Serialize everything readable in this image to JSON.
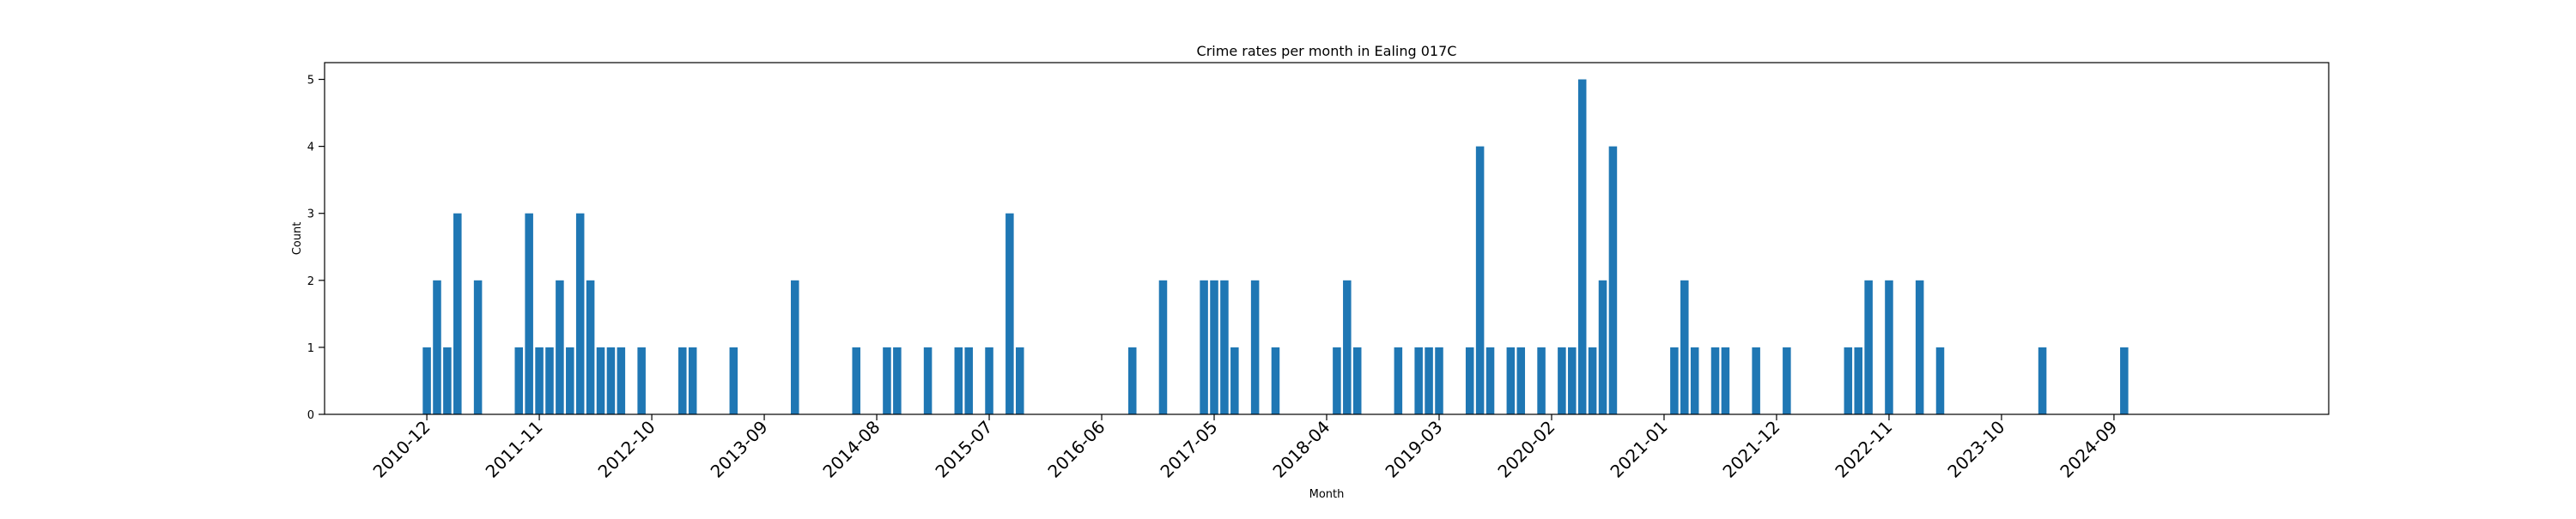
{
  "chart_data": {
    "type": "bar",
    "title": "Crime rates per month in Ealing 017C",
    "xlabel": "Month",
    "ylabel": "Count",
    "ylim": [
      0,
      5.25
    ],
    "yticks": [
      0,
      1,
      2,
      3,
      4,
      5
    ],
    "xtick_labels": [
      "2010-12",
      "2011-11",
      "2012-10",
      "2013-09",
      "2014-08",
      "2015-07",
      "2016-06",
      "2017-05",
      "2018-04",
      "2019-03",
      "2020-02",
      "2021-01",
      "2021-12",
      "2022-11",
      "2023-10",
      "2024-09"
    ],
    "xlim": [
      "2010-02",
      "2026-06"
    ],
    "grid": false,
    "legend": "none",
    "bar_color": "#1f77b4",
    "data": [
      {
        "x": "2010-12",
        "y": 1
      },
      {
        "x": "2011-01",
        "y": 2
      },
      {
        "x": "2011-02",
        "y": 1
      },
      {
        "x": "2011-03",
        "y": 3
      },
      {
        "x": "2011-05",
        "y": 2
      },
      {
        "x": "2011-09",
        "y": 1
      },
      {
        "x": "2011-10",
        "y": 3
      },
      {
        "x": "2011-11",
        "y": 1
      },
      {
        "x": "2011-12",
        "y": 1
      },
      {
        "x": "2012-01",
        "y": 2
      },
      {
        "x": "2012-02",
        "y": 1
      },
      {
        "x": "2012-03",
        "y": 3
      },
      {
        "x": "2012-04",
        "y": 2
      },
      {
        "x": "2012-05",
        "y": 1
      },
      {
        "x": "2012-06",
        "y": 1
      },
      {
        "x": "2012-07",
        "y": 1
      },
      {
        "x": "2012-09",
        "y": 1
      },
      {
        "x": "2013-01",
        "y": 1
      },
      {
        "x": "2013-02",
        "y": 1
      },
      {
        "x": "2013-06",
        "y": 1
      },
      {
        "x": "2013-12",
        "y": 2
      },
      {
        "x": "2014-06",
        "y": 1
      },
      {
        "x": "2014-09",
        "y": 1
      },
      {
        "x": "2014-10",
        "y": 1
      },
      {
        "x": "2015-01",
        "y": 1
      },
      {
        "x": "2015-04",
        "y": 1
      },
      {
        "x": "2015-05",
        "y": 1
      },
      {
        "x": "2015-07",
        "y": 1
      },
      {
        "x": "2015-09",
        "y": 3
      },
      {
        "x": "2015-10",
        "y": 1
      },
      {
        "x": "2016-09",
        "y": 1
      },
      {
        "x": "2016-12",
        "y": 2
      },
      {
        "x": "2017-04",
        "y": 2
      },
      {
        "x": "2017-05",
        "y": 2
      },
      {
        "x": "2017-06",
        "y": 2
      },
      {
        "x": "2017-07",
        "y": 1
      },
      {
        "x": "2017-09",
        "y": 2
      },
      {
        "x": "2017-11",
        "y": 1
      },
      {
        "x": "2018-05",
        "y": 1
      },
      {
        "x": "2018-06",
        "y": 2
      },
      {
        "x": "2018-07",
        "y": 1
      },
      {
        "x": "2018-11",
        "y": 1
      },
      {
        "x": "2019-01",
        "y": 1
      },
      {
        "x": "2019-02",
        "y": 1
      },
      {
        "x": "2019-03",
        "y": 1
      },
      {
        "x": "2019-06",
        "y": 1
      },
      {
        "x": "2019-07",
        "y": 4
      },
      {
        "x": "2019-08",
        "y": 1
      },
      {
        "x": "2019-10",
        "y": 1
      },
      {
        "x": "2019-11",
        "y": 1
      },
      {
        "x": "2020-01",
        "y": 1
      },
      {
        "x": "2020-03",
        "y": 1
      },
      {
        "x": "2020-04",
        "y": 1
      },
      {
        "x": "2020-05",
        "y": 5
      },
      {
        "x": "2020-06",
        "y": 1
      },
      {
        "x": "2020-07",
        "y": 2
      },
      {
        "x": "2020-08",
        "y": 4
      },
      {
        "x": "2021-02",
        "y": 1
      },
      {
        "x": "2021-03",
        "y": 2
      },
      {
        "x": "2021-04",
        "y": 1
      },
      {
        "x": "2021-06",
        "y": 1
      },
      {
        "x": "2021-07",
        "y": 1
      },
      {
        "x": "2021-10",
        "y": 1
      },
      {
        "x": "2022-01",
        "y": 1
      },
      {
        "x": "2022-07",
        "y": 1
      },
      {
        "x": "2022-08",
        "y": 1
      },
      {
        "x": "2022-09",
        "y": 2
      },
      {
        "x": "2022-11",
        "y": 2
      },
      {
        "x": "2023-02",
        "y": 2
      },
      {
        "x": "2023-04",
        "y": 1
      },
      {
        "x": "2024-02",
        "y": 1
      },
      {
        "x": "2024-10",
        "y": 1
      }
    ]
  }
}
